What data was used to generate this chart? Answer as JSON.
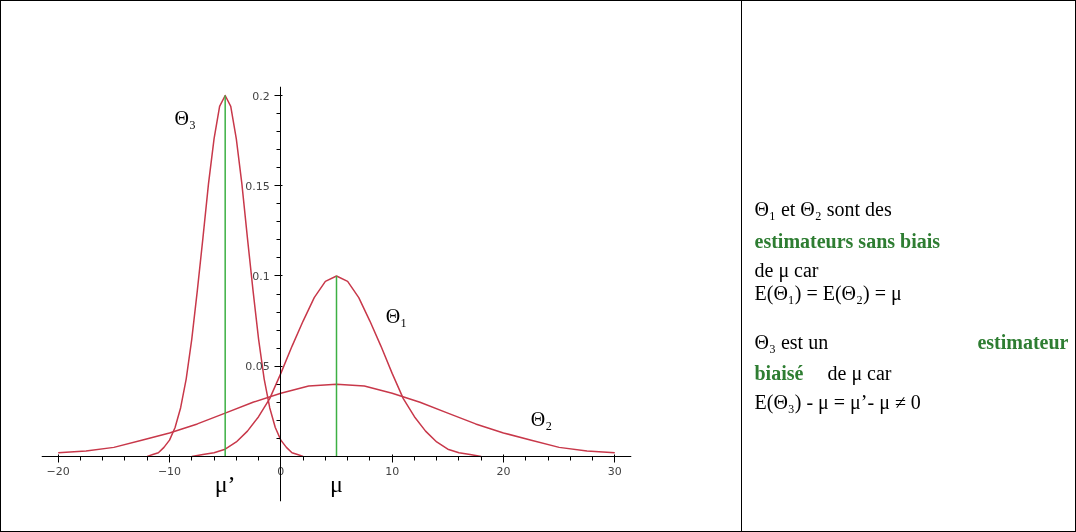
{
  "chart_data": [
    {
      "type": "line",
      "xlim": [
        -21.5,
        31.5
      ],
      "ylim": [
        -0.025,
        0.205
      ],
      "xticks": [
        -20,
        -10,
        0,
        10,
        20,
        30
      ],
      "yticks": [
        0.05,
        0.1,
        0.15,
        0.2
      ],
      "series": [
        {
          "name": "Θ₁",
          "color": "#c8384a",
          "x": [
            -8,
            -7,
            -6,
            -5,
            -4,
            -3,
            -2,
            -1,
            0,
            1,
            2,
            3,
            4,
            5,
            6,
            7,
            8,
            9,
            10,
            11,
            12,
            13,
            14,
            15,
            16,
            17,
            18
          ],
          "values": [
            0.0,
            0.001,
            0.002,
            0.004,
            0.008,
            0.014,
            0.022,
            0.032,
            0.046,
            0.061,
            0.075,
            0.088,
            0.097,
            0.1,
            0.097,
            0.088,
            0.075,
            0.061,
            0.046,
            0.032,
            0.022,
            0.014,
            0.008,
            0.004,
            0.002,
            0.001,
            0.0
          ]
        },
        {
          "name": "Θ₂",
          "color": "#c8384a",
          "x": [
            -20,
            -17.5,
            -15,
            -12.5,
            -10,
            -7.5,
            -5,
            -2.5,
            0,
            2.5,
            5,
            7.5,
            10,
            12.5,
            15,
            17.5,
            20,
            22.5,
            25,
            27.5,
            30
          ],
          "values": [
            0.002,
            0.003,
            0.005,
            0.009,
            0.013,
            0.018,
            0.024,
            0.03,
            0.035,
            0.039,
            0.04,
            0.039,
            0.035,
            0.03,
            0.024,
            0.018,
            0.013,
            0.009,
            0.005,
            0.003,
            0.002
          ]
        },
        {
          "name": "Θ₃",
          "color": "#c8384a",
          "x": [
            -12,
            -11.5,
            -11,
            -10.5,
            -10,
            -9.5,
            -9,
            -8.5,
            -8,
            -7.5,
            -7,
            -6.5,
            -6,
            -5.5,
            -5,
            -4.5,
            -4,
            -3.5,
            -3,
            -2.5,
            -2,
            -1.5,
            -1,
            -0.5,
            0,
            0.5,
            1,
            1.5,
            2
          ],
          "values": [
            0.0,
            0.001,
            0.002,
            0.005,
            0.009,
            0.016,
            0.027,
            0.043,
            0.065,
            0.092,
            0.121,
            0.151,
            0.176,
            0.194,
            0.2,
            0.194,
            0.176,
            0.151,
            0.121,
            0.092,
            0.065,
            0.043,
            0.027,
            0.016,
            0.009,
            0.005,
            0.002,
            0.001,
            0.0
          ]
        },
        {
          "color": "#3cb043",
          "x": [
            -5,
            -5
          ],
          "values": [
            0,
            0.2
          ]
        },
        {
          "color": "#3cb043",
          "x": [
            5,
            5
          ],
          "values": [
            0,
            0.1
          ]
        }
      ],
      "annotations": [
        {
          "text": "μ’",
          "x": -5,
          "y": 0
        },
        {
          "text": "μ",
          "x": 5,
          "y": 0
        }
      ]
    },
    {
      "type": "other",
      "annotations": [
        "Θ₁ et Θ₂ sont des",
        "estimateurs sans biais",
        "de μ car",
        "E(Θ₁) = E(Θ₂) = μ",
        "Θ₃ est un",
        "estimateur",
        "biaisé",
        "de μ car",
        "E(Θ₃) - μ = μ’- μ ≠ 0"
      ]
    }
  ]
}
